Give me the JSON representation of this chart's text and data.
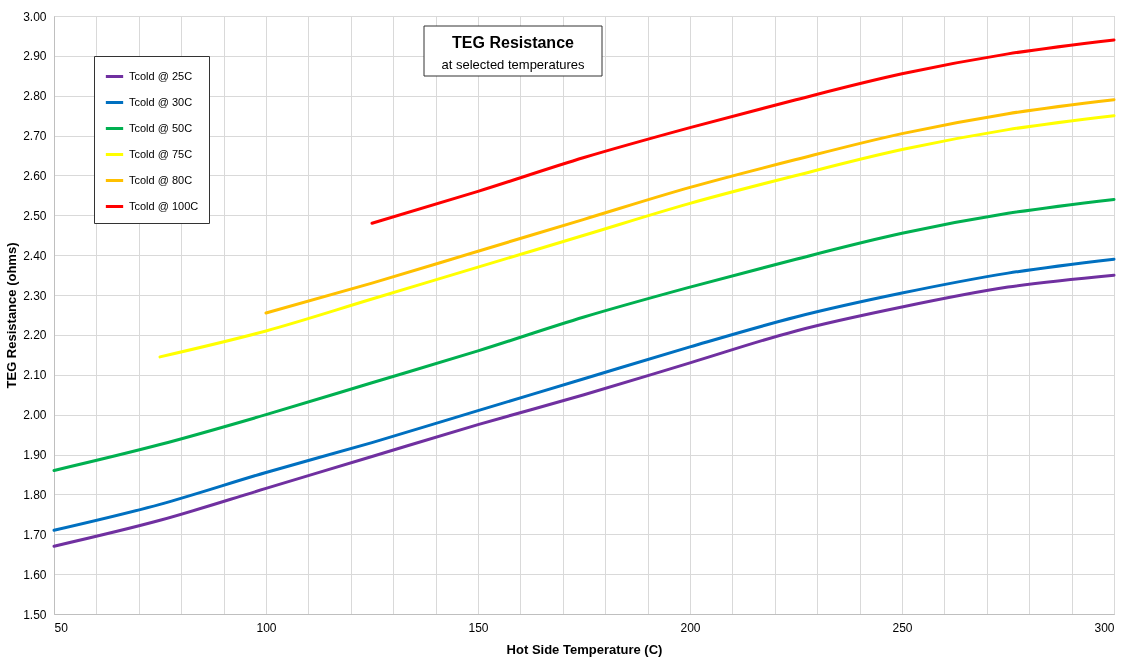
{
  "chart_data": {
    "type": "line",
    "title": "TEG Resistance",
    "subtitle": "at selected temperatures",
    "xlabel": "Hot Side Temperature (C)",
    "ylabel": "TEG Resistance (ohms)",
    "xlim": [
      50,
      300
    ],
    "ylim": [
      1.5,
      3.0
    ],
    "xticks": [
      50,
      {
        "value": 60,
        "label": null
      },
      {
        "value": 70,
        "label": null
      },
      {
        "value": 80,
        "label": null
      },
      {
        "value": 90,
        "label": null
      },
      100,
      {
        "value": 110,
        "label": null
      },
      {
        "value": 120,
        "label": null
      },
      {
        "value": 130,
        "label": null
      },
      {
        "value": 140,
        "label": null
      },
      150,
      {
        "value": 160,
        "label": null
      },
      {
        "value": 170,
        "label": null
      },
      {
        "value": 180,
        "label": null
      },
      {
        "value": 190,
        "label": null
      },
      200,
      {
        "value": 210,
        "label": null
      },
      {
        "value": 220,
        "label": null
      },
      {
        "value": 230,
        "label": null
      },
      {
        "value": 240,
        "label": null
      },
      250,
      {
        "value": 260,
        "label": null
      },
      {
        "value": 270,
        "label": null
      },
      {
        "value": 280,
        "label": null
      },
      {
        "value": 290,
        "label": null
      },
      300
    ],
    "yticks": [
      {
        "value": 1.5,
        "label": "1.50"
      },
      {
        "value": 1.6,
        "label": "1.60"
      },
      {
        "value": 1.7,
        "label": "1.70"
      },
      {
        "value": 1.8,
        "label": "1.80"
      },
      {
        "value": 1.9,
        "label": "1.90"
      },
      {
        "value": 2.0,
        "label": "2.00"
      },
      {
        "value": 2.1,
        "label": "2.10"
      },
      {
        "value": 2.2,
        "label": "2.20"
      },
      {
        "value": 2.3,
        "label": "2.30"
      },
      {
        "value": 2.4,
        "label": "2.40"
      },
      {
        "value": 2.5,
        "label": "2.50"
      },
      {
        "value": 2.6,
        "label": "2.60"
      },
      {
        "value": 2.7,
        "label": "2.70"
      },
      {
        "value": 2.8,
        "label": "2.80"
      },
      {
        "value": 2.9,
        "label": "2.90"
      },
      {
        "value": 3.0,
        "label": "3.00"
      }
    ],
    "grid": true,
    "legend": "top left",
    "marker": "none",
    "line_style": "solid",
    "series": [
      {
        "name": "Tcold @ 25C",
        "color": "#7030a0",
        "x": [
          50,
          75,
          100,
          125,
          150,
          175,
          200,
          225,
          250,
          275,
          300
        ],
        "values": [
          1.67,
          1.735,
          1.815,
          1.895,
          1.975,
          2.05,
          2.13,
          2.21,
          2.27,
          2.32,
          2.35
        ]
      },
      {
        "name": "Tcold @ 30C",
        "color": "#0070c0",
        "x": [
          50,
          75,
          100,
          125,
          150,
          175,
          200,
          225,
          250,
          275,
          300
        ],
        "values": [
          1.71,
          1.775,
          1.855,
          1.93,
          2.01,
          2.09,
          2.17,
          2.245,
          2.305,
          2.355,
          2.39
        ]
      },
      {
        "name": "Tcold @ 50C",
        "color": "#00b050",
        "x": [
          50,
          75,
          100,
          125,
          150,
          175,
          200,
          225,
          250,
          275,
          300
        ],
        "values": [
          1.86,
          1.925,
          2.0,
          2.08,
          2.16,
          2.245,
          2.32,
          2.39,
          2.455,
          2.505,
          2.54
        ]
      },
      {
        "name": "Tcold @ 75C",
        "color": "#ffff00",
        "x": [
          75,
          100,
          125,
          150,
          175,
          200,
          225,
          250,
          275,
          300
        ],
        "values": [
          2.145,
          2.21,
          2.29,
          2.37,
          2.45,
          2.53,
          2.6,
          2.665,
          2.715,
          2.75
        ]
      },
      {
        "name": "Tcold @ 80C",
        "color": "#ffc000",
        "x": [
          100,
          125,
          150,
          175,
          200,
          225,
          250,
          275,
          300
        ],
        "values": [
          2.255,
          2.33,
          2.41,
          2.49,
          2.57,
          2.64,
          2.705,
          2.755,
          2.79
        ]
      },
      {
        "name": "Tcold @ 100C",
        "color": "#ff0000",
        "x": [
          125,
          150,
          175,
          200,
          225,
          250,
          275,
          300
        ],
        "values": [
          2.48,
          2.56,
          2.645,
          2.72,
          2.79,
          2.855,
          2.905,
          2.94
        ]
      }
    ]
  }
}
